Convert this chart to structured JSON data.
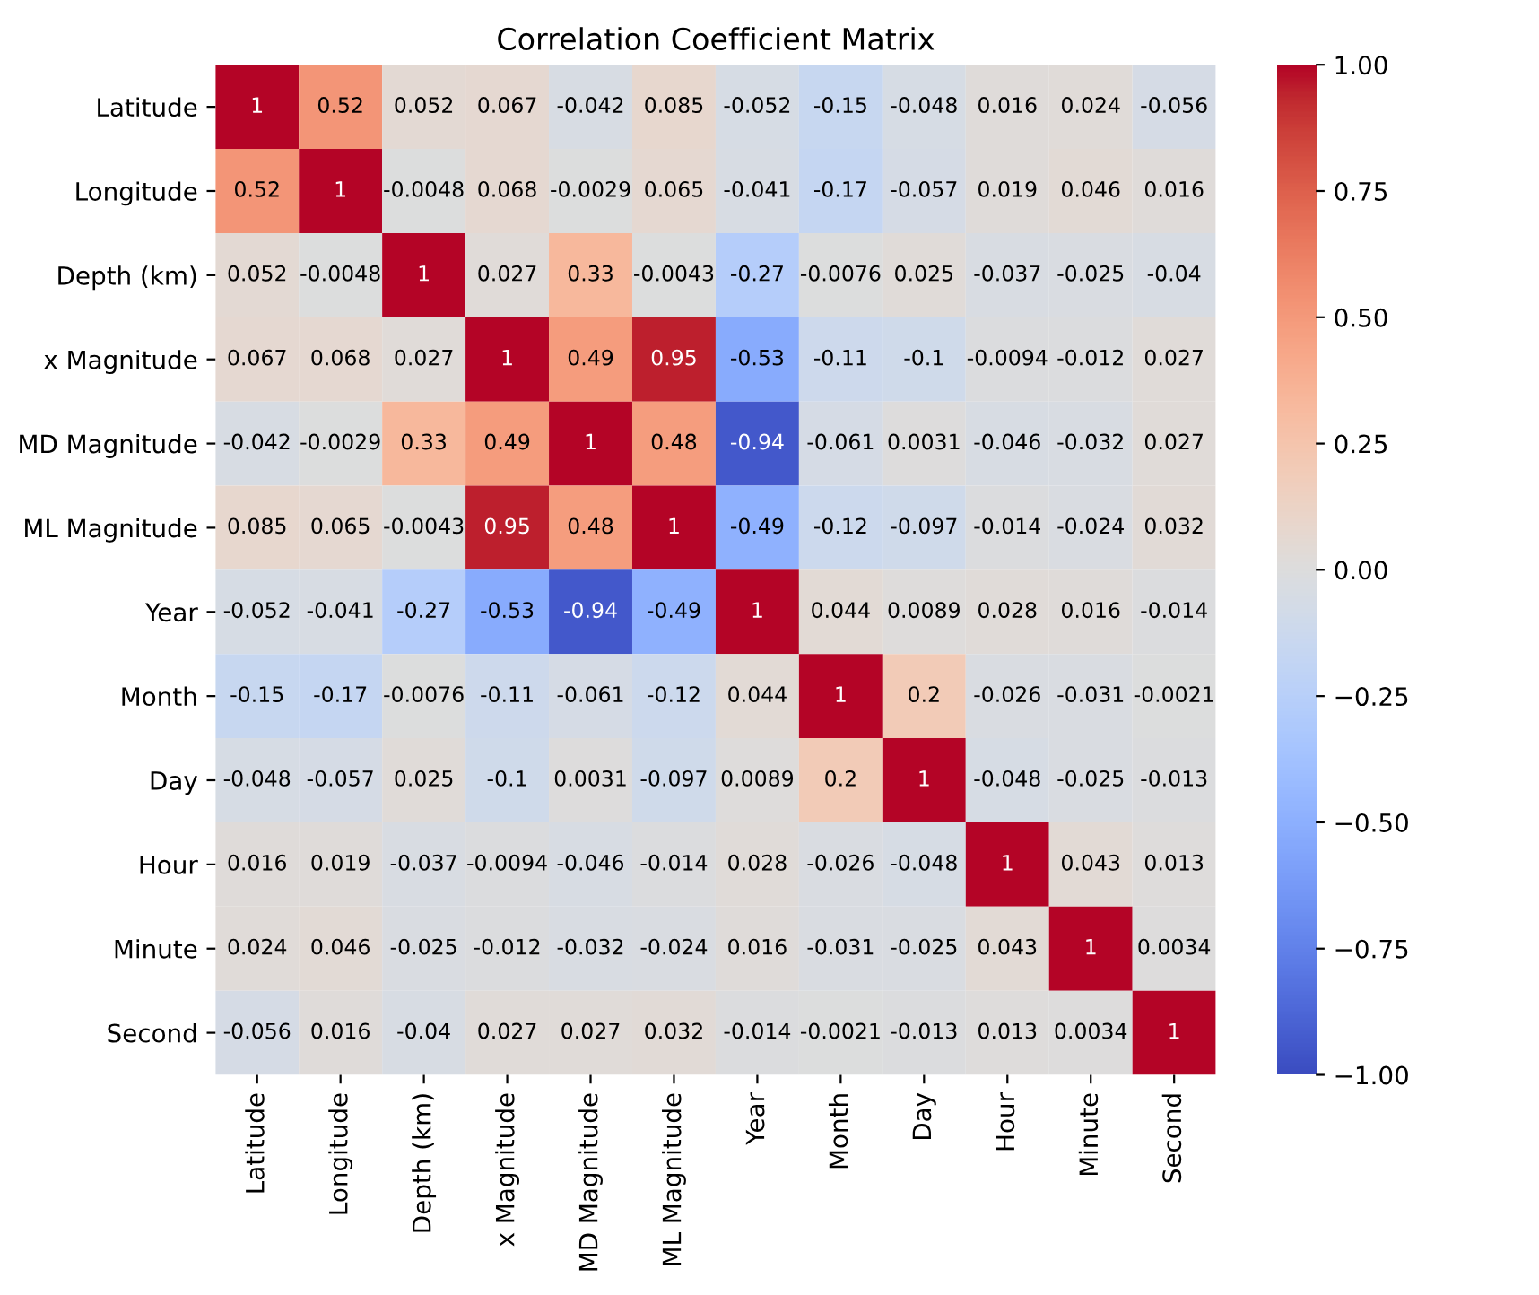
{
  "chart_data": {
    "type": "heatmap",
    "title": "Correlation Coefficient Matrix",
    "categories": [
      "Latitude",
      "Longitude",
      "Depth (km)",
      "x Magnitude",
      "MD Magnitude",
      "ML Magnitude",
      "Year",
      "Month",
      "Day",
      "Hour",
      "Minute",
      "Second"
    ],
    "y_categories": [
      "Latitude",
      "Longitude",
      "Depth (km)",
      "x Magnitude",
      "MD Magnitude",
      "ML Magnitude",
      "Year",
      "Month",
      "Day",
      "Hour",
      "Minute",
      "Second"
    ],
    "cells": [
      [
        1,
        0.52,
        0.052,
        0.067,
        -0.042,
        0.085,
        -0.052,
        -0.15,
        -0.048,
        0.016,
        0.024,
        -0.056
      ],
      [
        0.52,
        1,
        -0.0048,
        0.068,
        -0.0029,
        0.065,
        -0.041,
        -0.17,
        -0.057,
        0.019,
        0.046,
        0.016
      ],
      [
        0.052,
        -0.0048,
        1,
        0.027,
        0.33,
        -0.0043,
        -0.27,
        -0.0076,
        0.025,
        -0.037,
        -0.025,
        -0.04
      ],
      [
        0.067,
        0.068,
        0.027,
        1,
        0.49,
        0.95,
        -0.53,
        -0.11,
        -0.1,
        -0.0094,
        -0.012,
        0.027
      ],
      [
        -0.042,
        -0.0029,
        0.33,
        0.49,
        1,
        0.48,
        -0.94,
        -0.061,
        0.0031,
        -0.046,
        -0.032,
        0.027
      ],
      [
        0.085,
        0.065,
        -0.0043,
        0.95,
        0.48,
        1,
        -0.49,
        -0.12,
        -0.097,
        -0.014,
        -0.024,
        0.032
      ],
      [
        -0.052,
        -0.041,
        -0.27,
        -0.53,
        -0.94,
        -0.49,
        1,
        0.044,
        0.0089,
        0.028,
        0.016,
        -0.014
      ],
      [
        -0.15,
        -0.17,
        -0.0076,
        -0.11,
        -0.061,
        -0.12,
        0.044,
        1,
        0.2,
        -0.026,
        -0.031,
        -0.0021
      ],
      [
        -0.048,
        -0.057,
        0.025,
        -0.1,
        0.0031,
        -0.097,
        0.0089,
        0.2,
        1,
        -0.048,
        -0.025,
        -0.013
      ],
      [
        0.016,
        0.019,
        -0.037,
        -0.0094,
        -0.046,
        -0.014,
        0.028,
        -0.026,
        -0.048,
        1,
        0.043,
        0.013
      ],
      [
        0.024,
        0.046,
        -0.025,
        -0.012,
        -0.032,
        -0.024,
        0.016,
        -0.031,
        -0.025,
        0.043,
        1,
        0.0034
      ],
      [
        -0.056,
        0.016,
        -0.04,
        0.027,
        0.027,
        0.032,
        -0.014,
        -0.0021,
        -0.013,
        0.013,
        0.0034,
        1
      ]
    ],
    "data_labels": true,
    "clim": [
      -1,
      1
    ],
    "cticks": [
      {
        "value": -1,
        "label": "−1.00"
      },
      {
        "value": -0.75,
        "label": "−0.75"
      },
      {
        "value": -0.5,
        "label": "−0.50"
      },
      {
        "value": -0.25,
        "label": "−0.25"
      },
      {
        "value": 0,
        "label": "0.00"
      },
      {
        "value": 0.25,
        "label": "0.25"
      },
      {
        "value": 0.5,
        "label": "0.50"
      },
      {
        "value": 0.75,
        "label": "0.75"
      },
      {
        "value": 1,
        "label": "1.00"
      }
    ],
    "grid": false
  }
}
